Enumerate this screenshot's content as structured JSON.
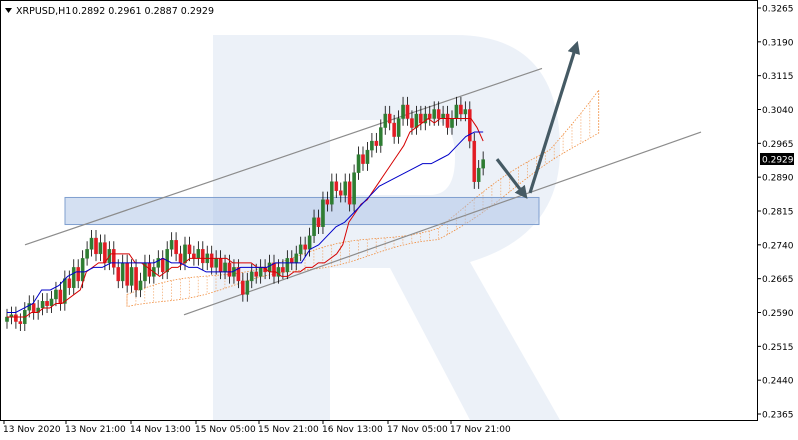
{
  "window": {
    "symbol_label": "XRPUSD,H1",
    "ohlc": "0.2892 0.2961 0.2887 0.2929",
    "current_price_label": "0.2929"
  },
  "colors": {
    "bull": "#2e7d32",
    "bear": "#e21c24",
    "tenkan": "#d50000",
    "kijun": "#0000c8",
    "cloud": "#f08c3c",
    "channel": "#8c8c8c",
    "zone": "#a9c2e6",
    "arrow": "#455a64",
    "watermark": "#dde6f3"
  },
  "chart_data": {
    "type": "candlestick",
    "title": "",
    "ylim": [
      0.2365,
      0.3265
    ],
    "y_ticks": [
      "0.3265",
      "0.3190",
      "0.3115",
      "0.3040",
      "0.2965",
      "0.2890",
      "0.2815",
      "0.2740",
      "0.2665",
      "0.2590",
      "0.2515",
      "0.2440",
      "0.2365"
    ],
    "x_ticks": [
      "13 Nov 2020",
      "13 Nov 21:00",
      "14 Nov 13:00",
      "15 Nov 05:00",
      "15 Nov 21:00",
      "16 Nov 13:00",
      "17 Nov 05:00",
      "17 Nov 21:00"
    ],
    "last_price": 0.2929,
    "candles_close": [
      0.258,
      0.2585,
      0.257,
      0.2565,
      0.2595,
      0.261,
      0.259,
      0.26,
      0.2615,
      0.2605,
      0.262,
      0.264,
      0.261,
      0.2665,
      0.2645,
      0.269,
      0.266,
      0.271,
      0.273,
      0.2755,
      0.272,
      0.2745,
      0.27,
      0.273,
      0.269,
      0.266,
      0.27,
      0.265,
      0.269,
      0.264,
      0.266,
      0.27,
      0.267,
      0.269,
      0.271,
      0.268,
      0.273,
      0.275,
      0.272,
      0.27,
      0.274,
      0.272,
      0.271,
      0.273,
      0.27,
      0.272,
      0.269,
      0.271,
      0.268,
      0.27,
      0.267,
      0.269,
      0.266,
      0.263,
      0.266,
      0.268,
      0.267,
      0.269,
      0.268,
      0.27,
      0.267,
      0.269,
      0.268,
      0.271,
      0.27,
      0.272,
      0.274,
      0.273,
      0.276,
      0.28,
      0.278,
      0.284,
      0.283,
      0.288,
      0.286,
      0.285,
      0.288,
      0.283,
      0.29,
      0.294,
      0.292,
      0.295,
      0.297,
      0.296,
      0.3,
      0.303,
      0.301,
      0.298,
      0.302,
      0.305,
      0.302,
      0.3,
      0.303,
      0.301,
      0.303,
      0.302,
      0.304,
      0.302,
      0.303,
      0.3,
      0.302,
      0.305,
      0.303,
      0.304,
      0.297,
      0.288,
      0.291,
      0.2929
    ],
    "tenkan": [
      0.258,
      0.258,
      0.258,
      0.258,
      0.259,
      0.259,
      0.26,
      0.26,
      0.261,
      0.261,
      0.262,
      0.263,
      0.264,
      0.268,
      0.269,
      0.27,
      0.27,
      0.272,
      0.272,
      0.272,
      0.272,
      0.27,
      0.27,
      0.269,
      0.268,
      0.267,
      0.268,
      0.269,
      0.269,
      0.27,
      0.271,
      0.271,
      0.271,
      0.271,
      0.271,
      0.271,
      0.271,
      0.27,
      0.27,
      0.27,
      0.27,
      0.269,
      0.269,
      0.268,
      0.268,
      0.267,
      0.267,
      0.268,
      0.268,
      0.269,
      0.269,
      0.27,
      0.27,
      0.271,
      0.272,
      0.274,
      0.279,
      0.281,
      0.283,
      0.284,
      0.286,
      0.288,
      0.29,
      0.292,
      0.294,
      0.296,
      0.299,
      0.3,
      0.301,
      0.302,
      0.301,
      0.302,
      0.302,
      0.302,
      0.302,
      0.302,
      0.302,
      0.3,
      0.297
    ],
    "kijun": [
      0.259,
      0.259,
      0.26,
      0.261,
      0.264,
      0.264,
      0.265,
      0.267,
      0.268,
      0.268,
      0.269,
      0.269,
      0.27,
      0.27,
      0.27,
      0.27,
      0.27,
      0.27,
      0.271,
      0.27,
      0.27,
      0.269,
      0.269,
      0.268,
      0.268,
      0.268,
      0.268,
      0.269,
      0.269,
      0.269,
      0.269,
      0.27,
      0.27,
      0.27,
      0.27,
      0.273,
      0.274,
      0.276,
      0.278,
      0.279,
      0.281,
      0.283,
      0.285,
      0.287,
      0.288,
      0.289,
      0.29,
      0.291,
      0.292,
      0.292,
      0.293,
      0.294,
      0.296,
      0.298,
      0.299,
      0.299
    ]
  }
}
